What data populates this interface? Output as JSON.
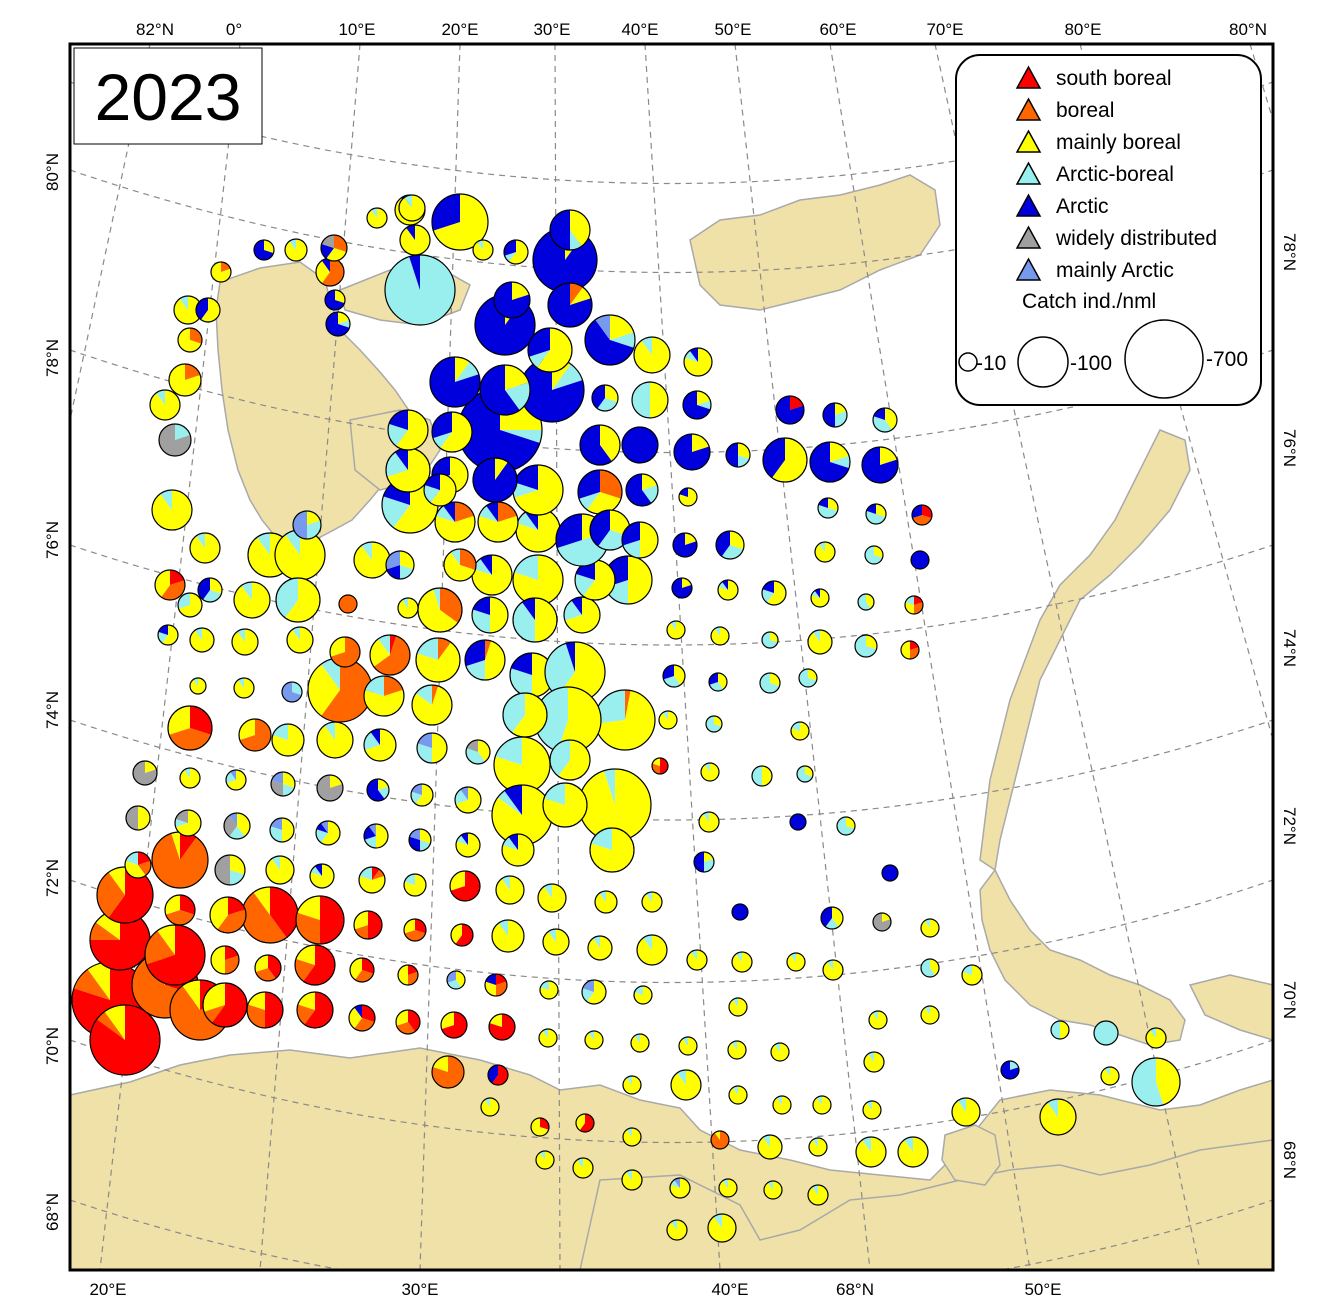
{
  "year_label": "2023",
  "top_labels": [
    "82°N",
    "0°",
    "10°E",
    "20°E",
    "30°E",
    "40°E",
    "50°E",
    "60°E",
    "70°E",
    "80°E",
    "80°N"
  ],
  "bottom_labels": [
    "20°E",
    "30°E",
    "40°E",
    "68°N",
    "50°E"
  ],
  "left_labels": [
    "80°N",
    "78°N",
    "76°N",
    "74°N",
    "72°N",
    "70°N",
    "68°N"
  ],
  "right_labels": [
    "78°N",
    "76°N",
    "74°N",
    "72°N",
    "70°N",
    "68°N"
  ],
  "legend": {
    "categories": [
      {
        "label": "south boreal",
        "color": "#ff0000"
      },
      {
        "label": "boreal",
        "color": "#ff6600"
      },
      {
        "label": "mainly boreal",
        "color": "#ffff00"
      },
      {
        "label": "Arctic-boreal",
        "color": "#99eeee"
      },
      {
        "label": "Arctic",
        "color": "#0000dd"
      },
      {
        "label": "widely distributed",
        "color": "#a0a0a0"
      },
      {
        "label": "mainly Arctic",
        "color": "#7799ee"
      }
    ],
    "size_title": "Catch ind./nml",
    "size_labels": [
      "-10",
      "-100",
      "-700"
    ]
  },
  "colors": {
    "land": "#efe1a8",
    "coast": "#a9a9a9",
    "grid": "#8a8a8a",
    "sea": "#ffffff"
  }
}
